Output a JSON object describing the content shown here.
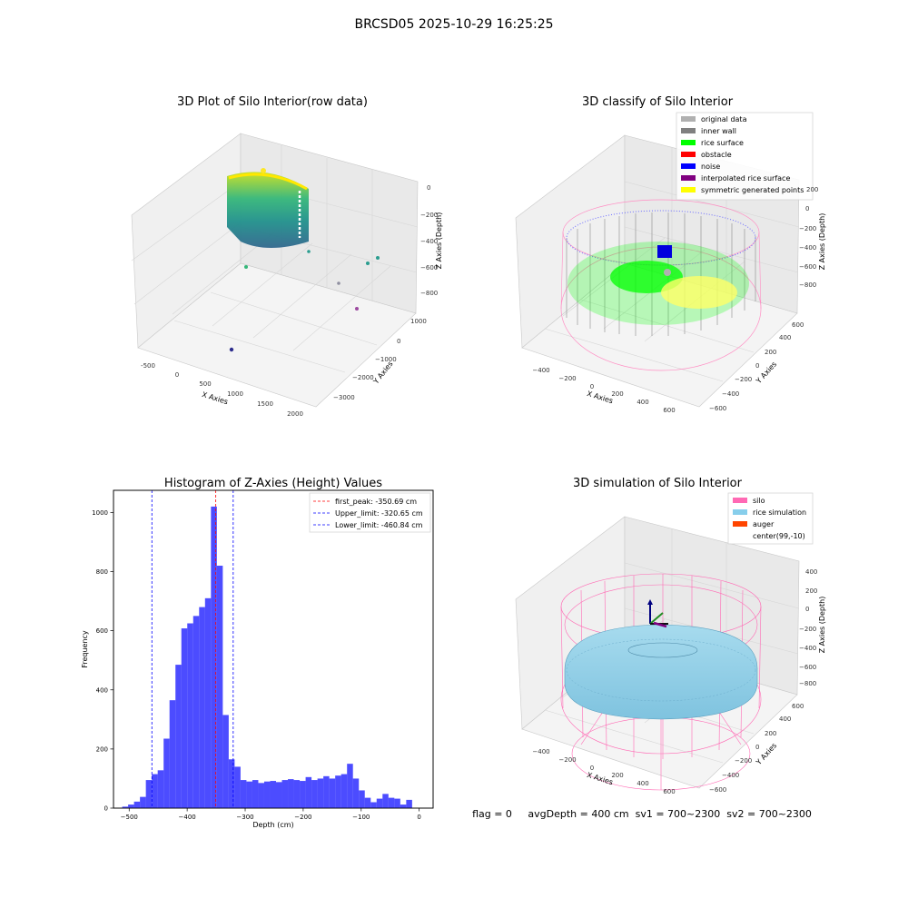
{
  "suptitle": "BRCSD05 2025-10-29 16:25:25",
  "status_line": "flag = 0     avgDepth = 400 cm  sv1 = 700~2300  sv2 = 700~2300",
  "colors": {
    "original": "#b0b0b0",
    "inner_wall": "#808080",
    "rice_surface": "#00ff00",
    "obstacle": "#ff0000",
    "noise": "#0000ff",
    "interp": "#800080",
    "symmetric": "#ffff00",
    "silo": "#ff69b4",
    "rice_sim": "#87ceeb",
    "auger": "#ff4500",
    "hist_bar": "#0000ff",
    "peak_line": "#ff0000",
    "limit_line": "#0000ff"
  },
  "chart_data": [
    {
      "type": "scatter",
      "title": "3D Plot of Silo Interior(row data)",
      "xlabel": "X Axies",
      "ylabel": "Y Axies",
      "zlabel": "Z Axies (Depth)",
      "x_ticks": [
        "-500",
        "0",
        "500",
        "1000",
        "1500",
        "2000"
      ],
      "y_ticks": [
        "1000",
        "0",
        "−1000",
        "−2000",
        "−3000"
      ],
      "z_ticks": [
        "0",
        "−200",
        "−400",
        "−600",
        "−800"
      ],
      "grid": true
    },
    {
      "type": "scatter",
      "title": "3D classify of Silo Interior",
      "xlabel": "X Axies",
      "ylabel": "Y Axies",
      "zlabel": "Z Axies (Depth)",
      "x_ticks": [
        "−400",
        "−200",
        "0",
        "200",
        "400",
        "600"
      ],
      "y_ticks": [
        "600",
        "400",
        "200",
        "0",
        "−200",
        "−400",
        "−600"
      ],
      "z_ticks": [
        "200",
        "0",
        "−200",
        "−400",
        "−600",
        "−800"
      ],
      "legend_position": "top-right",
      "legend": [
        {
          "label": "original data",
          "color": "#b0b0b0"
        },
        {
          "label": "inner wall",
          "color": "#808080"
        },
        {
          "label": "rice surface",
          "color": "#00ff00"
        },
        {
          "label": "obstacle",
          "color": "#ff0000"
        },
        {
          "label": "noise",
          "color": "#0000ff"
        },
        {
          "label": "interpolated rice surface",
          "color": "#800080"
        },
        {
          "label": "symmetric generated points",
          "color": "#ffff00"
        }
      ],
      "grid": true
    },
    {
      "type": "bar",
      "title": "Histogram of Z-Axies (Height) Values",
      "xlabel": "Depth (cm)",
      "ylabel": "Frequency",
      "xlim": [
        -527,
        24
      ],
      "ylim": [
        0,
        1075
      ],
      "x_ticks": [
        -500,
        -400,
        -300,
        -200,
        -100,
        0
      ],
      "x_tick_labels": [
        "−500",
        "−400",
        "−300",
        "−200",
        "−100",
        "0"
      ],
      "y_ticks": [
        0,
        200,
        400,
        600,
        800,
        1000
      ],
      "y_tick_labels": [
        "0",
        "200",
        "400",
        "600",
        "800",
        "1000"
      ],
      "bin_start": -512,
      "bin_width": 10.2,
      "values": [
        5,
        12,
        22,
        38,
        95,
        115,
        128,
        235,
        365,
        485,
        608,
        625,
        650,
        680,
        710,
        1020,
        820,
        315,
        165,
        140,
        95,
        90,
        95,
        85,
        90,
        92,
        88,
        95,
        98,
        95,
        92,
        105,
        95,
        100,
        108,
        100,
        110,
        115,
        150,
        100,
        60,
        35,
        20,
        32,
        48,
        35,
        32,
        12,
        28
      ],
      "vlines": [
        {
          "label": "first_peak: -350.69 cm",
          "x": -350.69,
          "color": "#ff0000"
        },
        {
          "label": "Upper_limit: -320.65 cm",
          "x": -320.65,
          "color": "#0000ff"
        },
        {
          "label": "Lower_limit: -460.84 cm",
          "x": -460.84,
          "color": "#0000ff"
        }
      ],
      "legend_position": "top-right"
    },
    {
      "type": "scatter",
      "title": "3D simulation of Silo Interior",
      "xlabel": "X Axies",
      "ylabel": "Y Axies",
      "zlabel": "Z Axies (Depth)",
      "x_ticks": [
        "−400",
        "−200",
        "0",
        "200",
        "400",
        "600"
      ],
      "y_ticks": [
        "600",
        "400",
        "200",
        "0",
        "−200",
        "−400",
        "−600"
      ],
      "z_ticks": [
        "400",
        "200",
        "0",
        "−200",
        "−400",
        "−600",
        "−800"
      ],
      "legend_position": "top-right",
      "legend": [
        {
          "label": "silo",
          "color": "#ff69b4"
        },
        {
          "label": "rice simulation",
          "color": "#87ceeb"
        },
        {
          "label": "auger",
          "color": "#ff4500"
        },
        {
          "label": "center(99,-10)",
          "color": ""
        }
      ],
      "grid": true
    }
  ]
}
